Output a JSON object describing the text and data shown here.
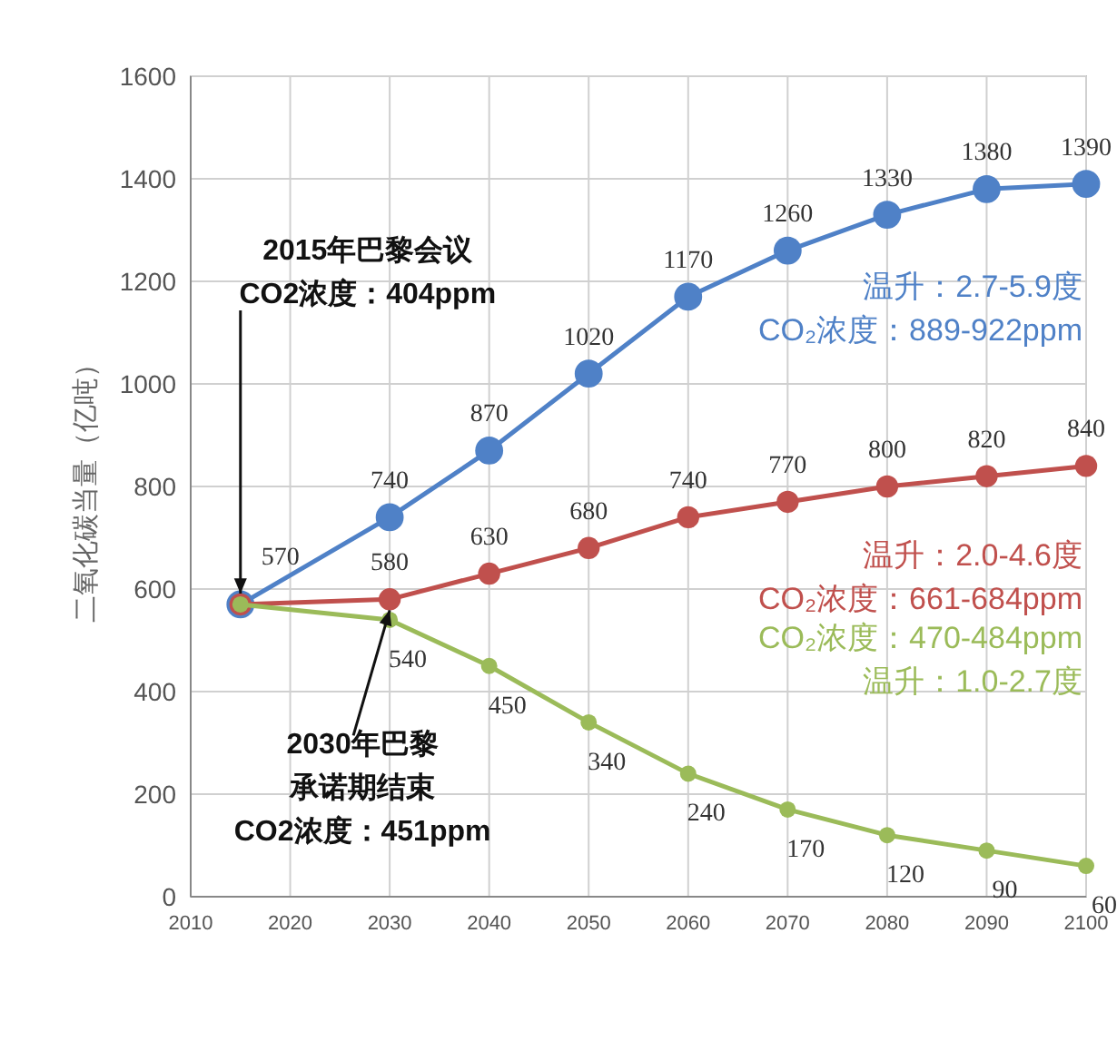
{
  "chart_data": {
    "type": "line",
    "ylabel": "二氧化碳当量（亿吨）",
    "x": [
      2015,
      2030,
      2040,
      2050,
      2060,
      2070,
      2080,
      2090,
      2100
    ],
    "xlim": [
      2010,
      2100
    ],
    "xticks": [
      2010,
      2020,
      2030,
      2040,
      2050,
      2060,
      2070,
      2080,
      2090,
      2100
    ],
    "ylim": [
      0,
      1600
    ],
    "yticks": [
      0,
      200,
      400,
      600,
      800,
      1000,
      1200,
      1400,
      1600
    ],
    "grid": true,
    "marker": "circle",
    "line_style": "solid",
    "series": [
      {
        "color": "#4f81c7",
        "values": [
          570,
          740,
          870,
          1020,
          1170,
          1260,
          1330,
          1380,
          1390
        ],
        "value_labels": [
          "570",
          "740",
          "870",
          "1020",
          "1170",
          "1260",
          "1330",
          "1380",
          "1390"
        ]
      },
      {
        "color": "#c0504d",
        "values": [
          570,
          580,
          630,
          680,
          740,
          770,
          800,
          820,
          840
        ],
        "value_labels": [
          null,
          "580",
          "630",
          "680",
          "740",
          "770",
          "800",
          "820",
          "840"
        ]
      },
      {
        "color": "#9bbb59",
        "values": [
          570,
          540,
          450,
          340,
          240,
          170,
          120,
          90,
          60
        ],
        "value_labels": [
          null,
          "540",
          "450",
          "340",
          "240",
          "170",
          "120",
          "90",
          "60"
        ]
      }
    ],
    "annotations": [
      {
        "text": "2015年巴黎会议\nCO2浓度：404ppm",
        "x": 2015,
        "y": 570
      },
      {
        "text": "2030年巴黎承诺期结束\nCO2浓度：451ppm",
        "x": 2030,
        "y": 580
      },
      "温升：2.7-5.9度\nCO₂浓度：889-922ppm",
      "温升：2.0-4.6度\nCO₂浓度：661-684ppm",
      "CO₂浓度：470-484ppm\n温升：1.0-2.7度"
    ]
  }
}
